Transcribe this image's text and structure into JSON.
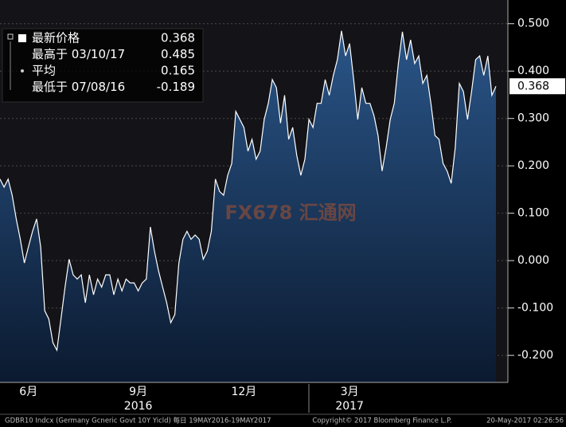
{
  "chart_data": {
    "type": "area",
    "series": [
      {
        "name": "GDBR10 Indcx",
        "color": "#ffffff",
        "values": [
          0.172,
          0.155,
          0.172,
          0.138,
          0.088,
          0.045,
          -0.005,
          0.029,
          0.062,
          0.088,
          0.029,
          -0.106,
          -0.123,
          -0.173,
          -0.189,
          -0.123,
          -0.056,
          0.003,
          -0.03,
          -0.039,
          -0.03,
          -0.089,
          -0.03,
          -0.072,
          -0.039,
          -0.056,
          -0.03,
          -0.03,
          -0.072,
          -0.039,
          -0.064,
          -0.039,
          -0.047,
          -0.047,
          -0.064,
          -0.047,
          -0.039,
          0.071,
          0.02,
          -0.022,
          -0.056,
          -0.089,
          -0.131,
          -0.114,
          -0.005,
          0.045,
          0.062,
          0.045,
          0.054,
          0.045,
          0.003,
          0.02,
          0.062,
          0.172,
          0.146,
          0.138,
          0.18,
          0.205,
          0.315,
          0.298,
          0.281,
          0.231,
          0.256,
          0.214,
          0.231,
          0.298,
          0.332,
          0.382,
          0.365,
          0.29,
          0.349,
          0.256,
          0.281,
          0.222,
          0.18,
          0.214,
          0.298,
          0.281,
          0.332,
          0.332,
          0.382,
          0.349,
          0.391,
          0.424,
          0.485,
          0.432,
          0.458,
          0.382,
          0.298,
          0.365,
          0.332,
          0.332,
          0.306,
          0.264,
          0.189,
          0.239,
          0.298,
          0.332,
          0.416,
          0.483,
          0.424,
          0.466,
          0.416,
          0.432,
          0.374,
          0.391,
          0.332,
          0.264,
          0.256,
          0.205,
          0.189,
          0.163,
          0.239,
          0.374,
          0.357,
          0.298,
          0.357,
          0.424,
          0.432,
          0.391,
          0.432,
          0.349,
          0.368
        ]
      }
    ],
    "ylim": [
      -0.257,
      0.55
    ],
    "yticks": [
      {
        "value": 0.5,
        "label": "0.500"
      },
      {
        "value": 0.4,
        "label": "0.400"
      },
      {
        "value": 0.3,
        "label": "0.300"
      },
      {
        "value": 0.2,
        "label": "0.200"
      },
      {
        "value": 0.1,
        "label": "0.100"
      },
      {
        "value": 0,
        "label": "0.000"
      },
      {
        "value": -0.1,
        "label": "-0.100"
      },
      {
        "value": -0.2,
        "label": "-0.200"
      }
    ],
    "xticks": [
      {
        "value": 7,
        "label": "6月"
      },
      {
        "value": 34,
        "label": "9月"
      },
      {
        "value": 60,
        "label": "12月"
      },
      {
        "value": 86,
        "label": "3月"
      }
    ],
    "year_ticks": [
      {
        "value": 34,
        "label": "2016"
      },
      {
        "value": 86,
        "label": "2017"
      }
    ],
    "last_value": {
      "value": 0.368,
      "label": "0.368"
    },
    "grid": true,
    "legend": [
      {
        "label": "最新价格",
        "value": "0.368"
      },
      {
        "label": "最高于 03/10/17",
        "value": "0.485"
      },
      {
        "label": "平均",
        "value": "0.165"
      },
      {
        "label": "最低于 07/08/16",
        "value": "-0.189"
      }
    ],
    "watermark": "FX678 汇通网",
    "footer": {
      "left": "GDBR10 Indcx (Germany Gcneric Govt 10Y Yicld)  每日 19MAY2016-19MAY2017",
      "center": "Copyright© 2017 Bloomberg Finance L.P.",
      "right": "20-May-2017 02:26:56"
    }
  }
}
